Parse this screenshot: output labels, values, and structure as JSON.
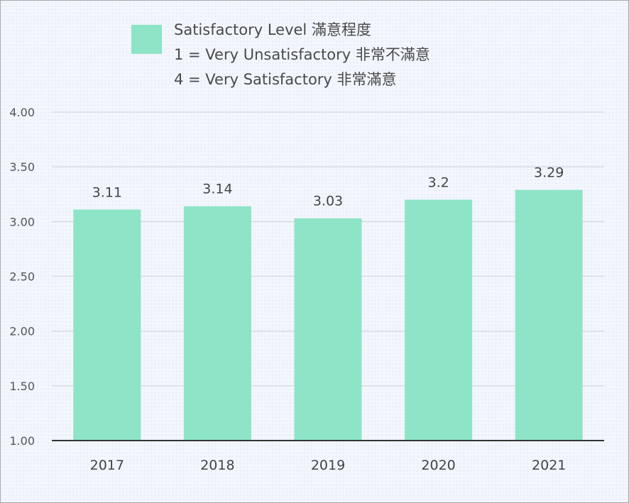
{
  "chart_data": {
    "type": "bar",
    "categories": [
      "2017",
      "2018",
      "2019",
      "2020",
      "2021"
    ],
    "series": [
      {
        "name": "Satisfactory Level 滿意程度",
        "values": [
          3.11,
          3.14,
          3.03,
          3.2,
          3.29
        ],
        "value_labels": [
          "3.11",
          "3.14",
          "3.03",
          "3.2",
          "3.29"
        ],
        "color": "#8ee4c7"
      }
    ],
    "legend": {
      "lines": [
        "Satisfactory Level 滿意程度",
        "1 = Very Unsatisfactory 非常不滿意",
        "4 = Very Satisfactory 非常滿意"
      ],
      "placement": "top"
    },
    "ylim": [
      1.0,
      4.0
    ],
    "yticks": [
      "1.00",
      "1.50",
      "2.00",
      "2.50",
      "3.00",
      "3.50",
      "4.00"
    ],
    "ytick_values": [
      1.0,
      1.5,
      2.0,
      2.5,
      3.0,
      3.5,
      4.0
    ],
    "grid": true,
    "title": "",
    "xlabel": "",
    "ylabel": ""
  }
}
